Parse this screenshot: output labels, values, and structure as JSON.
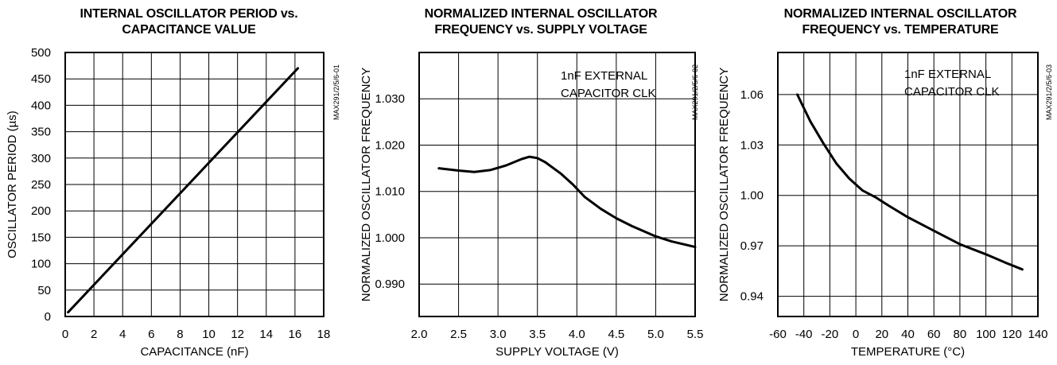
{
  "chart_data": [
    {
      "type": "line",
      "title_lines": [
        "INTERNAL OSCILLATOR PERIOD vs.",
        "CAPACITANCE VALUE"
      ],
      "xlabel": "CAPACITANCE (nF)",
      "ylabel": "OSCILLATOR PERIOD (µs)",
      "xlim": [
        0,
        18
      ],
      "ylim": [
        0,
        500
      ],
      "xticks": [
        "0",
        "2",
        "4",
        "6",
        "8",
        "10",
        "12",
        "14",
        "16",
        "18"
      ],
      "yticks": [
        "0",
        "50",
        "100",
        "150",
        "200",
        "250",
        "300",
        "350",
        "400",
        "450",
        "500"
      ],
      "grid": true,
      "code": "MAX291/2/5/6-01",
      "series": [
        {
          "x": [
            0.2,
            16.2
          ],
          "y": [
            8,
            470
          ]
        }
      ]
    },
    {
      "type": "line",
      "title_lines": [
        "NORMALIZED INTERNAL OSCILLATOR",
        "FREQUENCY vs. SUPPLY VOLTAGE"
      ],
      "xlabel": "SUPPLY VOLTAGE (V)",
      "ylabel": "NORMALIZED OSCILLATOR FREQUENCY",
      "xlim": [
        2.0,
        5.5
      ],
      "ylim": [
        0.983,
        1.04
      ],
      "xticks": [
        "2.0",
        "2.5",
        "3.0",
        "3.5",
        "4.0",
        "4.5",
        "5.0",
        "5.5"
      ],
      "yticks": [
        "0.990",
        "1.000",
        "1.010",
        "1.020",
        "1.030"
      ],
      "grid": true,
      "annotation": [
        "1nF EXTERNAL",
        "CAPACITOR CLK"
      ],
      "code": "MAX291/2/5/6-02",
      "series": [
        {
          "x": [
            2.25,
            2.5,
            2.7,
            2.9,
            3.1,
            3.3,
            3.4,
            3.5,
            3.6,
            3.8,
            3.95,
            4.1,
            4.3,
            4.5,
            4.7,
            5.0,
            5.2,
            5.5
          ],
          "y": [
            1.015,
            1.0145,
            1.0142,
            1.0146,
            1.0156,
            1.017,
            1.0175,
            1.0172,
            1.0163,
            1.0138,
            1.0115,
            1.0088,
            1.0063,
            1.0042,
            1.0025,
            1.0003,
            0.9992,
            0.998
          ]
        }
      ]
    },
    {
      "type": "line",
      "title_lines": [
        "NORMALIZED INTERNAL OSCILLATOR",
        "FREQUENCY vs. TEMPERATURE"
      ],
      "xlabel": "TEMPERATURE (°C)",
      "ylabel": "NORMALIZED OSCILLATOR FREQUENCY",
      "xlim": [
        -60,
        140
      ],
      "ylim": [
        0.928,
        1.085
      ],
      "xticks": [
        "-60",
        "-40",
        "-20",
        "0",
        "20",
        "40",
        "60",
        "80",
        "100",
        "120",
        "140"
      ],
      "yticks": [
        "0.94",
        "0.97",
        "1.00",
        "1.03",
        "1.06"
      ],
      "grid": true,
      "annotation": [
        "1nF EXTERNAL",
        "CAPACITOR CLK"
      ],
      "code": "MAX291/2/5/6-03",
      "series": [
        {
          "x": [
            -45,
            -35,
            -25,
            -15,
            -5,
            5,
            15,
            25,
            40,
            60,
            80,
            100,
            115,
            128
          ],
          "y": [
            1.06,
            1.044,
            1.031,
            1.019,
            1.01,
            1.003,
            0.999,
            0.994,
            0.987,
            0.979,
            0.971,
            0.965,
            0.96,
            0.956
          ]
        }
      ]
    }
  ]
}
